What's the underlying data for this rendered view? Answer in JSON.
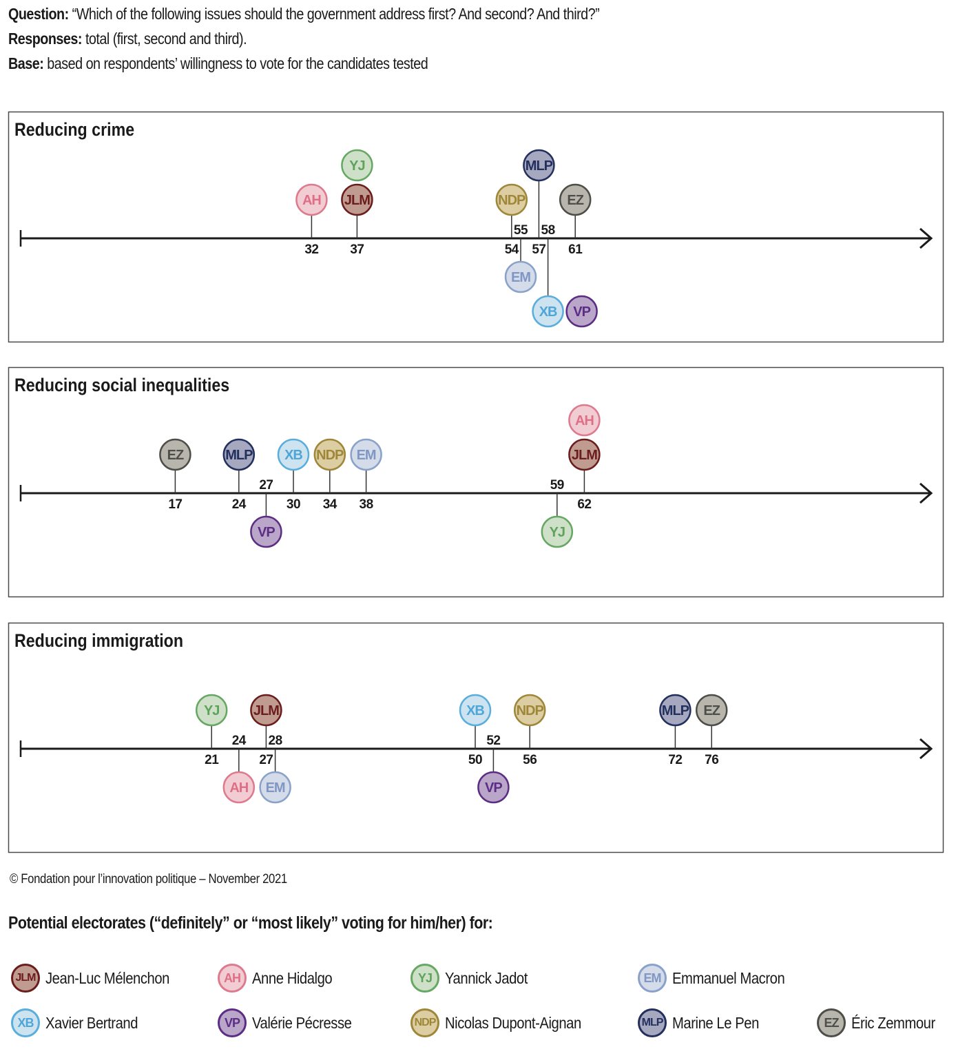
{
  "header": {
    "question_label": "Question:",
    "question_text": " “Which of the following issues should the government address first? And second? And third?”",
    "responses_label": "Responses:",
    "responses_text": " total (first, second and third).",
    "base_label": "Base:",
    "base_text": " based on respondents’ willingness to vote for the candidates tested"
  },
  "candidates": {
    "JLM": {
      "abbr": "JLM",
      "name": "Jean-Luc Mélenchon",
      "fill": "#c09b8f",
      "stroke": "#6b1d1d",
      "text": "#6b1d1d"
    },
    "AH": {
      "abbr": "AH",
      "name": "Anne Hidalgo",
      "fill": "#f2ccd3",
      "stroke": "#de7a8e",
      "text": "#de6f86"
    },
    "YJ": {
      "abbr": "YJ",
      "name": "Yannick Jadot",
      "fill": "#cfe0c8",
      "stroke": "#66a863",
      "text": "#5ea25b"
    },
    "EM": {
      "abbr": "EM",
      "name": "Emmanuel Macron",
      "fill": "#d4dbe9",
      "stroke": "#8aa1ca",
      "text": "#8096c4"
    },
    "XB": {
      "abbr": "XB",
      "name": "Xavier Bertrand",
      "fill": "#cde3f0",
      "stroke": "#5aaedb",
      "text": "#4ea6d8"
    },
    "VP": {
      "abbr": "VP",
      "name": "Valérie Pécresse",
      "fill": "#b9a6c9",
      "stroke": "#5c2d84",
      "text": "#5c2d84"
    },
    "NDP": {
      "abbr": "NDP",
      "name": "Nicolas Dupont-Aignan",
      "fill": "#dccda2",
      "stroke": "#9e8738",
      "text": "#9e8738"
    },
    "MLP": {
      "abbr": "MLP",
      "name": "Marine Le Pen",
      "fill": "#a6a8bf",
      "stroke": "#23305e",
      "text": "#23305e"
    },
    "EZ": {
      "abbr": "EZ",
      "name": "Éric Zemmour",
      "fill": "#b8b5ad",
      "stroke": "#4e4e49",
      "text": "#4e4e49"
    }
  },
  "chart_data": [
    {
      "type": "scatter",
      "title": "Reducing crime",
      "xlim": [
        0,
        100
      ],
      "points": [
        {
          "candidate": "AH",
          "value": 32,
          "side": "above",
          "level": 1
        },
        {
          "candidate": "JLM",
          "value": 37,
          "side": "above",
          "level": 1
        },
        {
          "candidate": "YJ",
          "value": 37,
          "side": "above",
          "level": 2,
          "stacked": true
        },
        {
          "candidate": "NDP",
          "value": 54,
          "side": "above",
          "level": 1
        },
        {
          "candidate": "EM",
          "value": 55,
          "side": "below",
          "level": 1
        },
        {
          "candidate": "MLP",
          "value": 57,
          "side": "above",
          "level": 2
        },
        {
          "candidate": "XB",
          "value": 58,
          "side": "below",
          "level": 2
        },
        {
          "candidate": "VP",
          "value": 58,
          "side": "below",
          "level": 2,
          "stacked": true,
          "offset": 1
        },
        {
          "candidate": "EZ",
          "value": 61,
          "side": "above",
          "level": 1
        }
      ]
    },
    {
      "type": "scatter",
      "title": "Reducing social inequalities",
      "xlim": [
        0,
        100
      ],
      "points": [
        {
          "candidate": "EZ",
          "value": 17,
          "side": "above",
          "level": 1
        },
        {
          "candidate": "MLP",
          "value": 24,
          "side": "above",
          "level": 1
        },
        {
          "candidate": "VP",
          "value": 27,
          "side": "below",
          "level": 1
        },
        {
          "candidate": "XB",
          "value": 30,
          "side": "above",
          "level": 1
        },
        {
          "candidate": "NDP",
          "value": 34,
          "side": "above",
          "level": 1
        },
        {
          "candidate": "EM",
          "value": 38,
          "side": "above",
          "level": 1
        },
        {
          "candidate": "YJ",
          "value": 59,
          "side": "below",
          "level": 1
        },
        {
          "candidate": "JLM",
          "value": 62,
          "side": "above",
          "level": 1
        },
        {
          "candidate": "AH",
          "value": 62,
          "side": "above",
          "level": 2,
          "stacked": true
        }
      ]
    },
    {
      "type": "scatter",
      "title": "Reducing immigration",
      "xlim": [
        0,
        100
      ],
      "points": [
        {
          "candidate": "YJ",
          "value": 21,
          "side": "above",
          "level": 1
        },
        {
          "candidate": "AH",
          "value": 24,
          "side": "below",
          "level": 1
        },
        {
          "candidate": "JLM",
          "value": 27,
          "side": "above",
          "level": 1
        },
        {
          "candidate": "EM",
          "value": 28,
          "side": "below",
          "level": 1
        },
        {
          "candidate": "XB",
          "value": 50,
          "side": "above",
          "level": 1
        },
        {
          "candidate": "VP",
          "value": 52,
          "side": "below",
          "level": 1
        },
        {
          "candidate": "NDP",
          "value": 56,
          "side": "above",
          "level": 1
        },
        {
          "candidate": "MLP",
          "value": 72,
          "side": "above",
          "level": 1
        },
        {
          "candidate": "EZ",
          "value": 76,
          "side": "above",
          "level": 1
        }
      ]
    }
  ],
  "footer": {
    "copyright": "© Fondation pour l’innovation politique – November 2021",
    "legend_title": "Potential electorates (“definitely” or “most likely” voting for him/her) for:"
  },
  "legend": [
    "JLM",
    "AH",
    "YJ",
    "EM",
    "XB",
    "VP",
    "NDP",
    "MLP",
    "EZ"
  ]
}
